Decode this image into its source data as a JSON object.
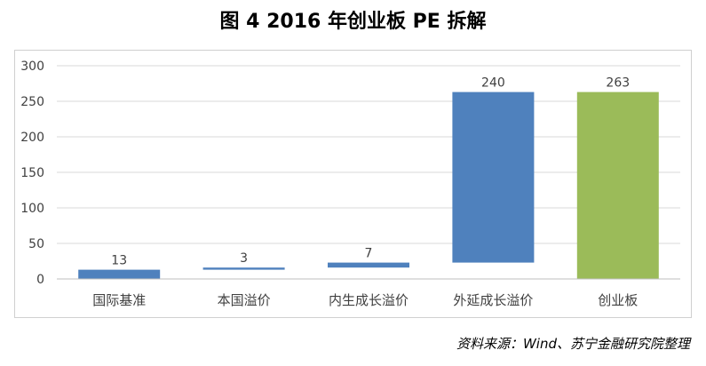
{
  "header": {
    "title": "图 4 2016 年创业板 PE 拆解"
  },
  "source": "资料来源：Wind、苏宁金融研究院整理",
  "chart_data": {
    "type": "bar",
    "subtype": "waterfall",
    "categories": [
      "国际基准",
      "本国溢价",
      "内生成长溢价",
      "外延成长溢价",
      "创业板"
    ],
    "values": [
      13,
      3,
      7,
      240,
      263
    ],
    "bar_ranges": [
      [
        0,
        13
      ],
      [
        13,
        16
      ],
      [
        16,
        23
      ],
      [
        23,
        263
      ],
      [
        0,
        263
      ]
    ],
    "data_labels": [
      "13",
      "3",
      "7",
      "240",
      "263"
    ],
    "colors": [
      "#4f81bd",
      "#4f81bd",
      "#4f81bd",
      "#4f81bd",
      "#9bbb59"
    ],
    "ylim": [
      0,
      300
    ],
    "yticks": [
      0,
      50,
      100,
      150,
      200,
      250,
      300
    ],
    "grid": true,
    "legend": "none"
  }
}
